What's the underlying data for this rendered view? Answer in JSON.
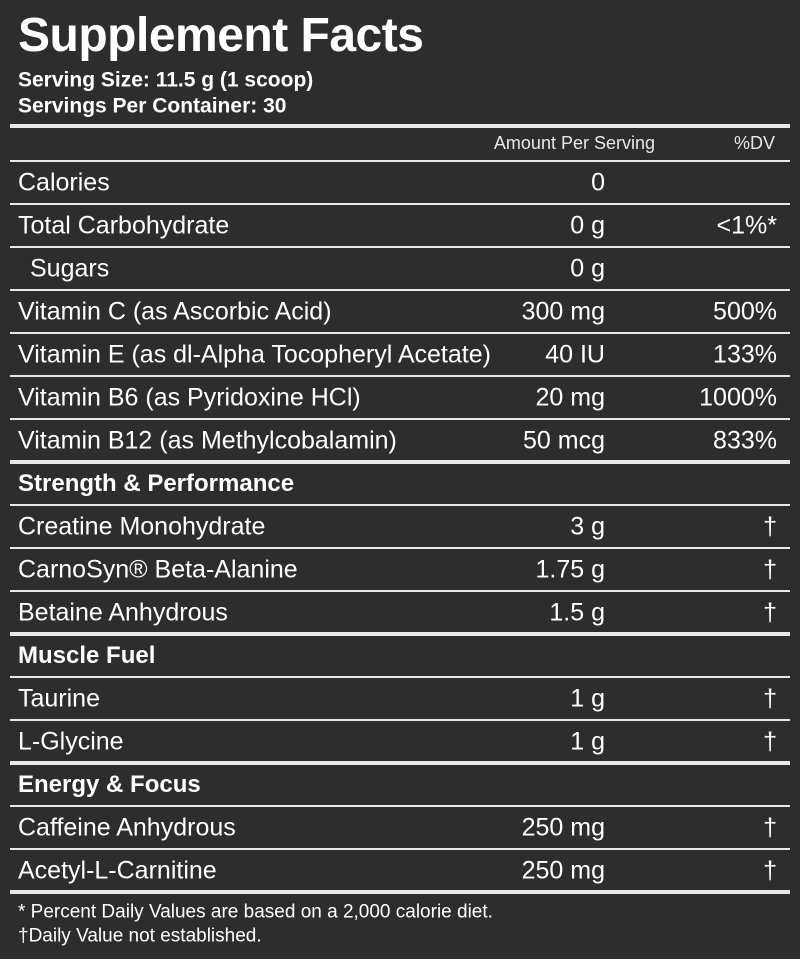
{
  "title": "Supplement Facts",
  "serving_size": "Serving Size: 11.5 g (1 scoop)",
  "servings_per_container": "Servings Per Container: 30",
  "columns": [
    "Amount Per Serving",
    "%DV"
  ],
  "rows": [
    {
      "name": "Calories",
      "amount": "0"
    },
    {
      "name": "Total Carbohydrate",
      "amount": "0 g",
      "dv": "<1%*"
    },
    {
      "name": "Sugars",
      "amount": "0 g",
      "indent": true
    },
    {
      "name": "Vitamin C (as Ascorbic Acid)",
      "amount": "300 mg",
      "dv": "500%"
    },
    {
      "name": "Vitamin E (as dl-Alpha Tocopheryl Acetate)",
      "amount": "40 IU",
      "dv": "133%"
    },
    {
      "name": "Vitamin B6 (as Pyridoxine HCl)",
      "amount": "20 mg",
      "dv": "1000%"
    },
    {
      "name": "Vitamin B12 (as Methylcobalamin)",
      "amount": "50 mcg",
      "dv": "833%"
    }
  ],
  "groups": [
    {
      "heading": "Strength & Performance",
      "rows": [
        {
          "name": "Creatine Monohydrate",
          "amount": "3 g",
          "dv": "†"
        },
        {
          "name": "CarnoSyn® Beta-Alanine",
          "amount": "1.75 g",
          "dv": "†"
        },
        {
          "name": "Betaine Anhydrous",
          "amount": "1.5 g",
          "dv": "†"
        }
      ]
    },
    {
      "heading": "Muscle Fuel",
      "rows": [
        {
          "name": "Taurine",
          "amount": "1 g",
          "dv": "†"
        },
        {
          "name": "L-Glycine",
          "amount": "1 g",
          "dv": "†"
        }
      ]
    },
    {
      "heading": "Energy & Focus",
      "rows": [
        {
          "name": "Caffeine Anhydrous",
          "amount": "250 mg",
          "dv": "†"
        },
        {
          "name": "Acetyl-L-Carnitine",
          "amount": "250 mg",
          "dv": "†"
        }
      ]
    }
  ],
  "footnotes": [
    "* Percent Daily Values are based on a 2,000 calorie diet.",
    "†Daily Value not established."
  ]
}
